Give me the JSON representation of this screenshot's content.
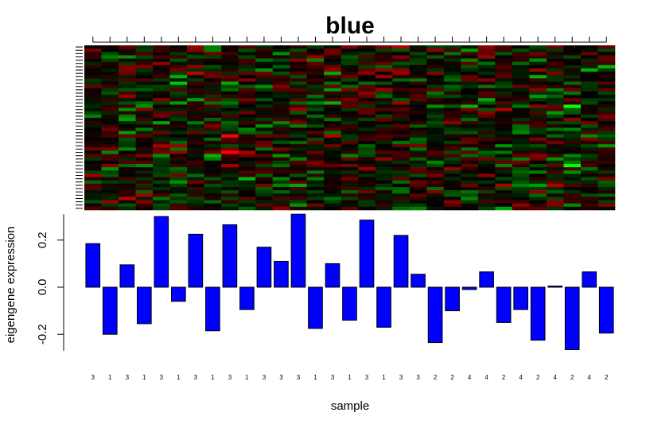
{
  "chart_data": {
    "type": "bar",
    "title": "blue",
    "xlabel": "sample",
    "ylabel": "eigengene expression",
    "ylim": [
      -0.27,
      0.31
    ],
    "yticks": [
      -0.2,
      0.0,
      0.2
    ],
    "ytick_labels": [
      "-0.2",
      "0.0",
      "0.2"
    ],
    "categories": [
      "3",
      "1",
      "3",
      "1",
      "3",
      "1",
      "3",
      "1",
      "3",
      "1",
      "3",
      "3",
      "3",
      "1",
      "3",
      "1",
      "3",
      "1",
      "3",
      "3",
      "2",
      "2",
      "4",
      "4",
      "2",
      "4",
      "2",
      "4",
      "2",
      "4",
      "2"
    ],
    "values": [
      0.185,
      -0.2,
      0.095,
      -0.155,
      0.3,
      -0.06,
      0.225,
      -0.185,
      0.265,
      -0.095,
      0.17,
      0.11,
      0.31,
      -0.175,
      0.1,
      -0.14,
      0.285,
      -0.17,
      0.22,
      0.055,
      -0.235,
      -0.1,
      -0.01,
      0.065,
      -0.15,
      -0.095,
      -0.225,
      0.005,
      -0.265,
      0.065,
      -0.195
    ],
    "bar_color": "#0000ff",
    "heatmap": {
      "type": "heatmap",
      "columns": 31,
      "rows": 50,
      "low_color": "#00ff00",
      "mid_color": "#000000",
      "high_color": "#ff0000"
    }
  }
}
